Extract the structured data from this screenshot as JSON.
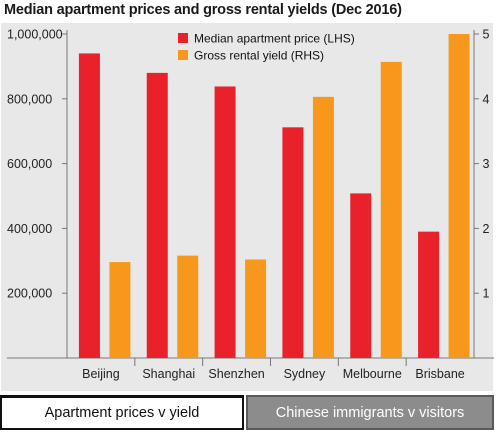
{
  "chart_data": {
    "type": "bar",
    "title": "Median apartment prices and gross rental yields (Dec 2016)",
    "categories": [
      "Beijing",
      "Shanghai",
      "Shenzhen",
      "Sydney",
      "Melbourne",
      "Brisbane"
    ],
    "series": [
      {
        "name": "Median apartment price (LHS)",
        "axis": "left",
        "color": "#e8212b",
        "values": [
          940000,
          880000,
          838000,
          712000,
          508000,
          390000
        ]
      },
      {
        "name": "Gross rental yield (RHS)",
        "axis": "right",
        "color": "#f7981d",
        "values": [
          1.48,
          1.58,
          1.52,
          4.03,
          4.57,
          5.0
        ]
      }
    ],
    "y_left": {
      "lim": [
        0,
        1000000
      ],
      "ticks": [
        200000,
        400000,
        600000,
        800000,
        1000000
      ],
      "tick_labels": [
        "200,000",
        "400,000",
        "600,000",
        "800,000",
        "1,000,000"
      ]
    },
    "y_right": {
      "lim": [
        0,
        5
      ],
      "ticks": [
        1,
        2,
        3,
        4,
        5
      ],
      "tick_labels": [
        "1",
        "2",
        "3",
        "4",
        "5"
      ]
    },
    "legend_position": "top-center",
    "grid": false
  },
  "tabs": [
    {
      "label": "Apartment prices v yield",
      "active": true
    },
    {
      "label": "Chinese immigrants v visitors",
      "active": false
    }
  ]
}
